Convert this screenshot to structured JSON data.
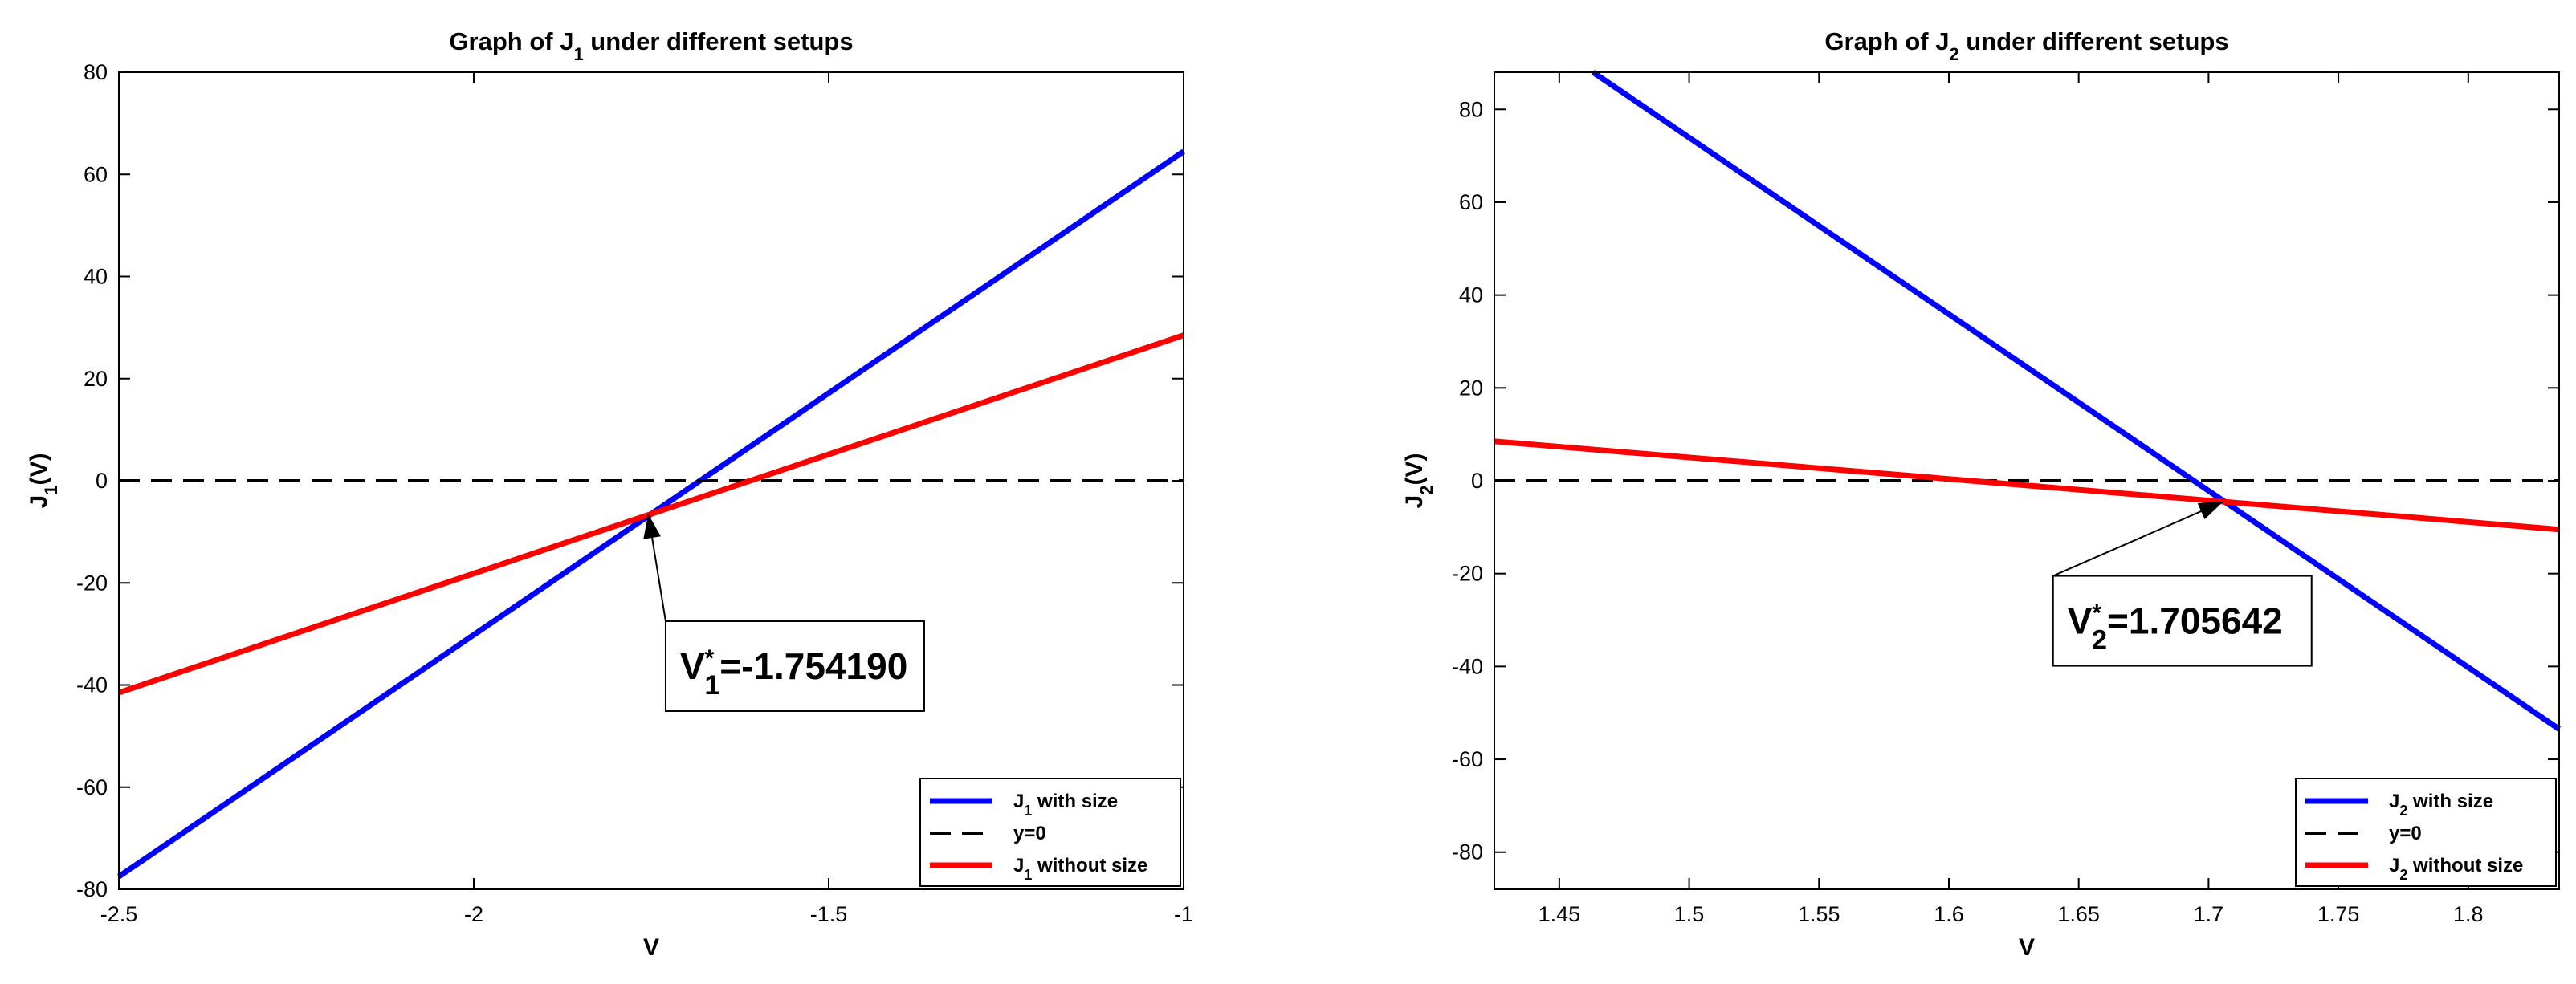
{
  "chart_data": [
    {
      "type": "line",
      "title": "Graph of J",
      "title_sub": "1",
      "title_rest": " under different setups",
      "xlabel": "V",
      "ylabel": "J",
      "ylabel_sub": "1",
      "ylabel_rest": "(V)",
      "xlim": [
        -2.5,
        -1
      ],
      "ylim": [
        -80,
        80
      ],
      "xticks": [
        -2.5,
        -2,
        -1.5,
        -1
      ],
      "xtick_labels": [
        "-2.5",
        "-2",
        "-1.5",
        "-1"
      ],
      "yticks": [
        -80,
        -60,
        -40,
        -20,
        0,
        20,
        40,
        60,
        80
      ],
      "ytick_labels": [
        "-80",
        "-60",
        "-40",
        "-20",
        "0",
        "20",
        "40",
        "60",
        "80"
      ],
      "grid": false,
      "legend_position": "bottom-right",
      "series": [
        {
          "name": "J",
          "name_sub": "1",
          "name_rest": " with size",
          "color": "#0000ff",
          "style": "solid",
          "x": [
            -2.5,
            -1
          ],
          "y": [
            -77.5,
            64.5
          ]
        },
        {
          "name": "y=0",
          "color": "#000000",
          "style": "dashed",
          "x": [
            -2.5,
            -1
          ],
          "y": [
            0,
            0
          ]
        },
        {
          "name": "J",
          "name_sub": "1",
          "name_rest": " without size",
          "color": "#ff0000",
          "style": "solid",
          "x": [
            -2.5,
            -1
          ],
          "y": [
            -41.5,
            28.5
          ]
        }
      ],
      "annotation": {
        "pre": "V",
        "sup": "*",
        "sub": "1",
        "value": "=-1.754190",
        "point": [
          -1.75419,
          -6.5
        ],
        "box_anchor": [
          -1.56,
          -27.5
        ]
      }
    },
    {
      "type": "line",
      "title": "Graph of J",
      "title_sub": "2",
      "title_rest": " under different setups",
      "xlabel": "V",
      "ylabel": "J",
      "ylabel_sub": "2",
      "ylabel_rest": "(V)",
      "xlim": [
        1.425,
        1.835
      ],
      "ylim": [
        -88,
        88
      ],
      "xticks": [
        1.45,
        1.5,
        1.55,
        1.6,
        1.65,
        1.7,
        1.75,
        1.8
      ],
      "xtick_labels": [
        "1.45",
        "1.5",
        "1.55",
        "1.6",
        "1.65",
        "1.7",
        "1.75",
        "1.8"
      ],
      "yticks": [
        -80,
        -60,
        -40,
        -20,
        0,
        20,
        40,
        60,
        80
      ],
      "ytick_labels": [
        "-80",
        "-60",
        "-40",
        "-20",
        "0",
        "20",
        "40",
        "60",
        "80"
      ],
      "grid": false,
      "legend_position": "bottom-right",
      "series": [
        {
          "name": "J",
          "name_sub": "2",
          "name_rest": " with size",
          "color": "#0000ff",
          "style": "solid",
          "x": [
            1.463,
            1.835
          ],
          "y": [
            88,
            -53.5
          ]
        },
        {
          "name": "y=0",
          "color": "#000000",
          "style": "dashed",
          "x": [
            1.425,
            1.835
          ],
          "y": [
            0,
            0
          ]
        },
        {
          "name": "J",
          "name_sub": "2",
          "name_rest": " without size",
          "color": "#ff0000",
          "style": "solid",
          "x": [
            1.425,
            1.835
          ],
          "y": [
            8.5,
            -10.5
          ]
        }
      ],
      "annotation": {
        "pre": "V",
        "sup": "*",
        "sub": "2",
        "value": "=1.705642",
        "point": [
          1.705642,
          -4.5
        ],
        "box_anchor": [
          1.6865,
          -20.5
        ]
      }
    }
  ]
}
